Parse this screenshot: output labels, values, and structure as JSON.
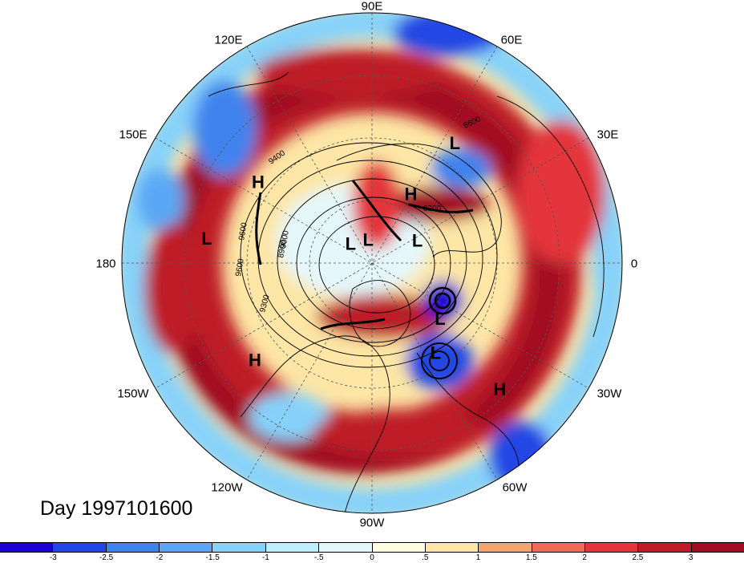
{
  "day_label": "Day 1997101600",
  "longitude_labels": [
    "90E",
    "60E",
    "30E",
    "0",
    "30W",
    "60W",
    "90W",
    "120W",
    "150W",
    "180",
    "150E",
    "120E"
  ],
  "pressure_centers": [
    {
      "label": "L",
      "lon": 55,
      "lat": 38
    },
    {
      "label": "H",
      "lon": 145,
      "lat": 40
    },
    {
      "label": "H",
      "lon": 60,
      "lat": 62
    },
    {
      "label": "L",
      "lon": 172,
      "lat": 30
    },
    {
      "label": "L",
      "lon": 100,
      "lat": 82
    },
    {
      "label": "L",
      "lon": 25,
      "lat": 72
    },
    {
      "label": "L",
      "lon": 140,
      "lat": 80
    },
    {
      "label": "L",
      "lon": -40,
      "lat": 58
    },
    {
      "label": "L",
      "lon": -55,
      "lat": 50
    },
    {
      "label": "H",
      "lon": -140,
      "lat": 35
    },
    {
      "label": "H",
      "lon": -45,
      "lat": 25
    }
  ],
  "contour_labels": [
    "9600",
    "9600",
    "9300",
    "9000",
    "8900",
    "9400",
    "8600",
    "8300"
  ],
  "colorbar": {
    "ticks": [
      "-3",
      "-2.5",
      "-2",
      "-1.5",
      "-1",
      "-.5",
      "0",
      ".5",
      "1",
      "1.5",
      "2",
      "2.5",
      "3"
    ],
    "colors": [
      "#1c00d8",
      "#2146e4",
      "#3f83ee",
      "#5aa8f5",
      "#86d2fa",
      "#bdeefc",
      "#e4f8fc",
      "#fffde0",
      "#fde6a6",
      "#f4a46f",
      "#ee6b55",
      "#e3353b",
      "#be1b28",
      "#a00e23"
    ]
  },
  "colors": {
    "polar_red": "#b5192c",
    "land_line": "#000000"
  }
}
